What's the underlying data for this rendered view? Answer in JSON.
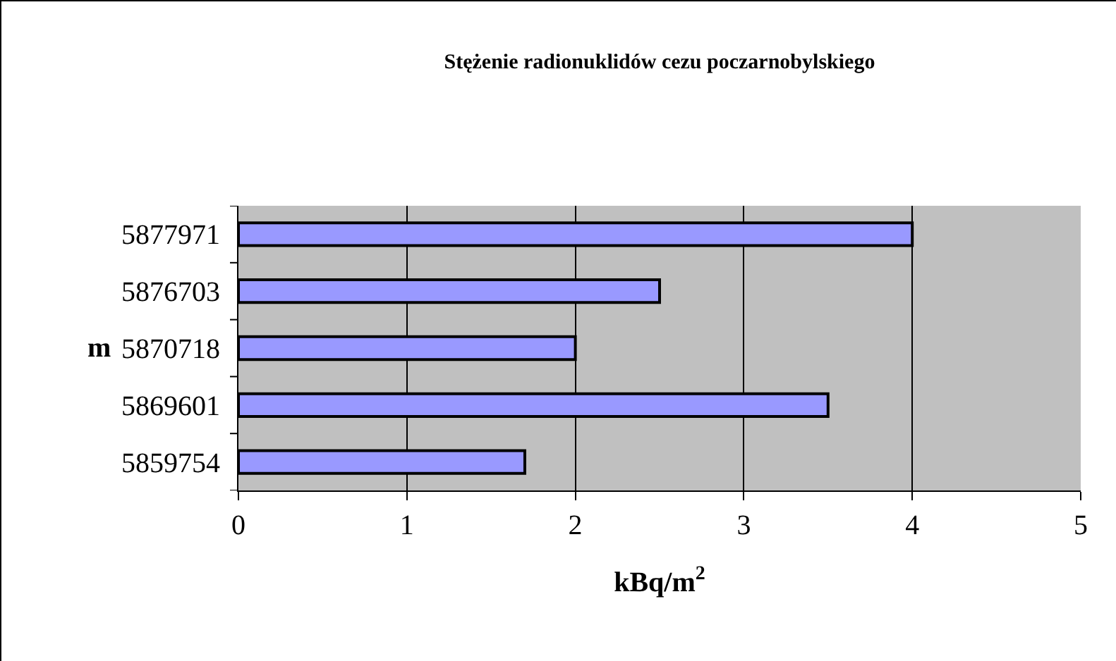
{
  "chart_data": {
    "type": "bar",
    "orientation": "horizontal",
    "title": "Stężenie radionuklidów cezu poczarnobylskiego",
    "xlabel": "kBq/m$^{2}$",
    "ylabel": "m",
    "categories": [
      "5877971",
      "5876703",
      "5870718",
      "5869601",
      "5859754"
    ],
    "values": [
      4,
      2.5,
      2,
      3.5,
      1.7
    ],
    "color": "#9999ff",
    "xlim": [
      0,
      5
    ],
    "xticks": [
      0,
      1,
      2,
      3,
      4,
      5
    ],
    "grid": "x"
  }
}
